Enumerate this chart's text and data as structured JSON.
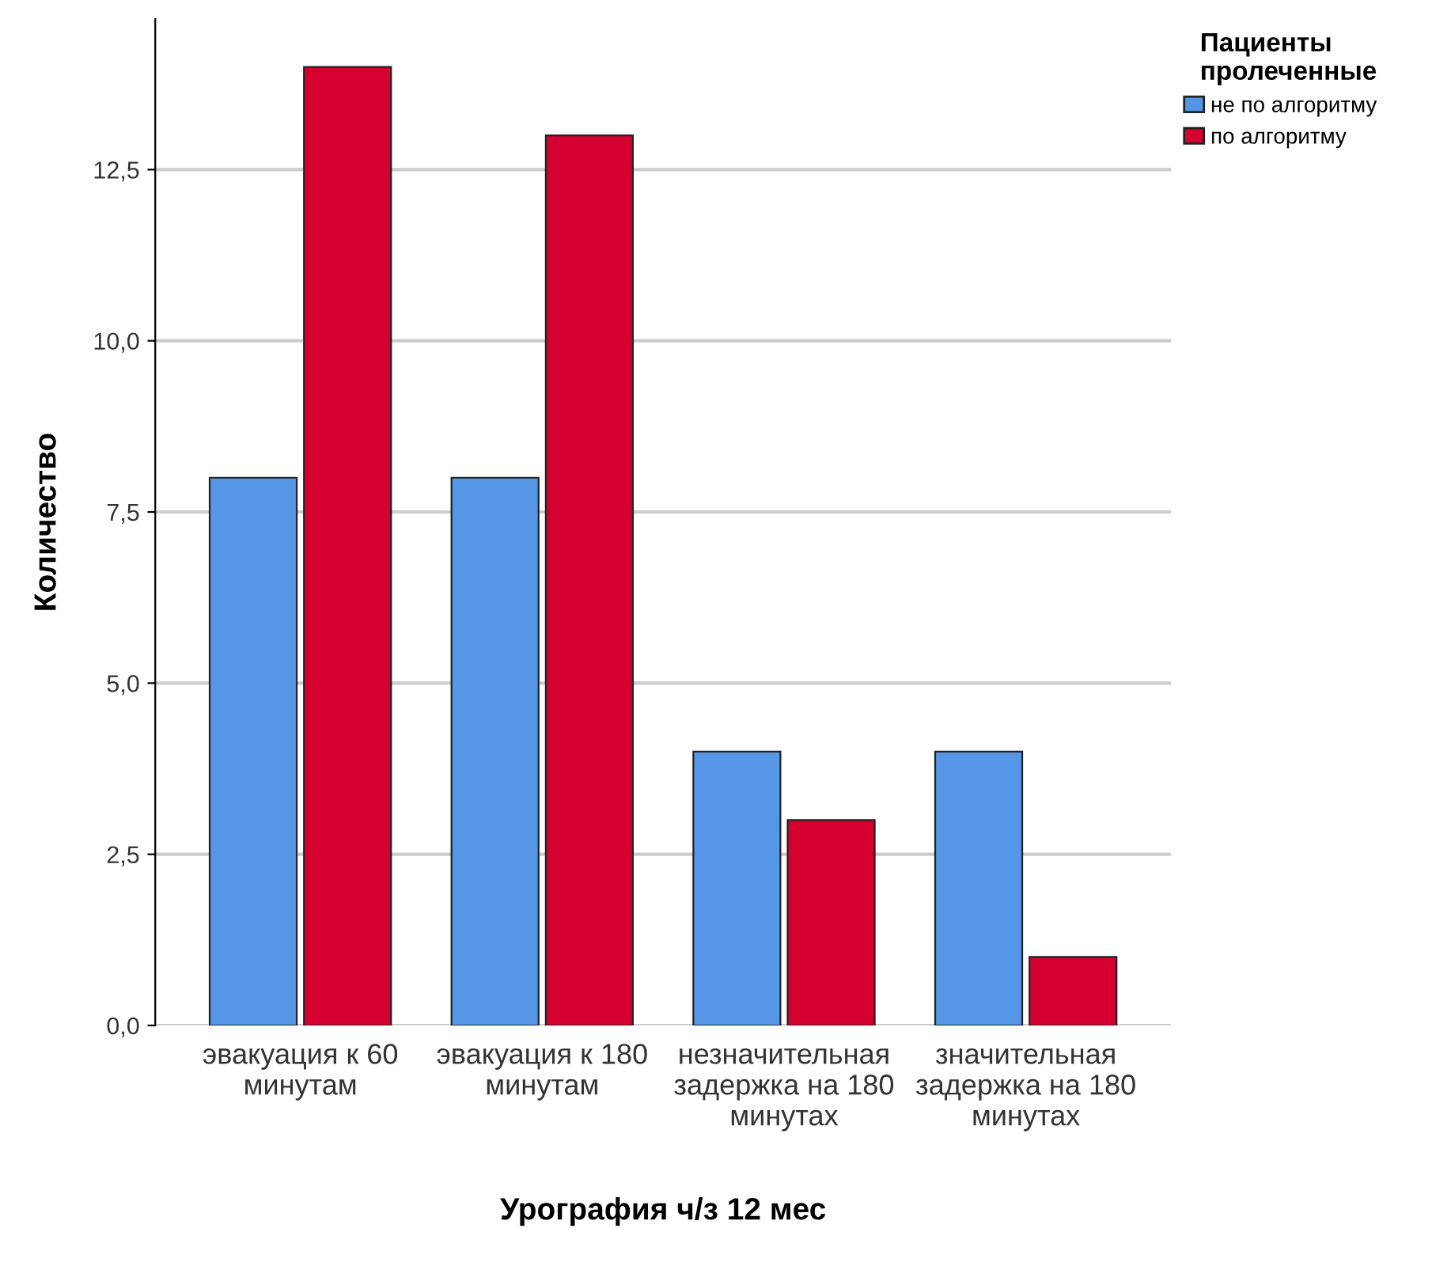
{
  "chart_data": {
    "type": "bar",
    "xlabel": "Урография ч/з 12 мес",
    "ylabel": "Количество",
    "legend_title": "Пациенты\nпролеченные",
    "categories": [
      "эвакуация к 60\nминутам",
      "эвакуация к 180\nминутам",
      "незначительная\nзадержка на 180\nминутах",
      "значительная\nзадержка на 180\nминутах"
    ],
    "series": [
      {
        "name": "не по алгоритму",
        "color": "#5596e6",
        "values": [
          8,
          8,
          4,
          4
        ]
      },
      {
        "name": "по алгоритму",
        "color": "#d5002f",
        "values": [
          14,
          13,
          3,
          1
        ]
      }
    ],
    "ylim": [
      0,
      14.7
    ],
    "yticks": [
      {
        "value": 0,
        "label": "0,0"
      },
      {
        "value": 2.5,
        "label": "2,5"
      },
      {
        "value": 5,
        "label": "5,0"
      },
      {
        "value": 7.5,
        "label": "7,5"
      },
      {
        "value": 10,
        "label": "10,0"
      },
      {
        "value": 12.5,
        "label": "12,5"
      }
    ],
    "grid": "y",
    "legend": "top right"
  }
}
